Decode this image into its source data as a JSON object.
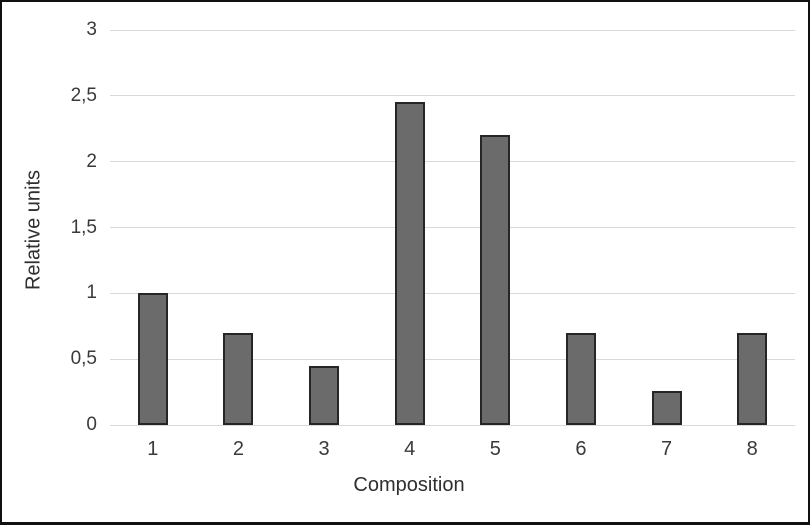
{
  "chart_data": {
    "type": "bar",
    "categories": [
      "1",
      "2",
      "3",
      "4",
      "5",
      "6",
      "7",
      "8"
    ],
    "values": [
      1.0,
      0.7,
      0.45,
      2.45,
      2.2,
      0.7,
      0.26,
      0.7
    ],
    "title": "",
    "xlabel": "Composition",
    "ylabel": "Relative units",
    "ylim": [
      0,
      3
    ],
    "ytick_values": [
      0,
      0.5,
      1,
      1.5,
      2,
      2.5,
      3
    ],
    "ytick_labels": [
      "0",
      "0,5",
      "1",
      "1,5",
      "2",
      "2,5",
      "3"
    ],
    "grid": true,
    "legend": false,
    "colors": {
      "bar_fill": "#6b6b6b",
      "bar_border": "#262626",
      "gridline": "#d9d9d9",
      "tick_text": "#3a3a3a",
      "frame_border": "#111111",
      "background": "#ffffff"
    }
  }
}
